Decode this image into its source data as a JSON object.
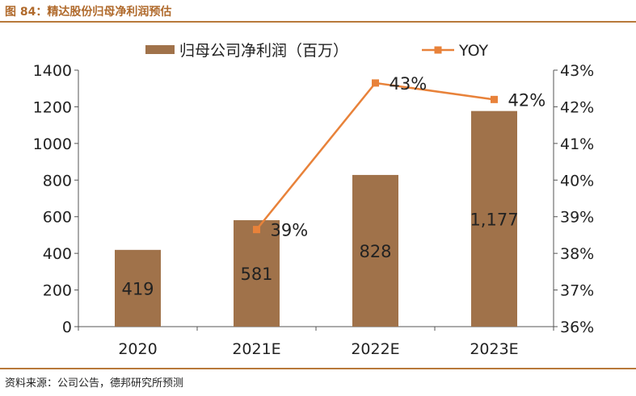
{
  "figure": {
    "title": "图 84：精达股份归母净利润预估",
    "source": "资料来源：公司公告，德邦研究所预测"
  },
  "colors": {
    "bar": "#a0724a",
    "line": "#e8823a",
    "accent_rule": "#b8793a",
    "title": "#b06a2c"
  },
  "chart_data": {
    "type": "bar",
    "categories": [
      "2020",
      "2021E",
      "2022E",
      "2023E"
    ],
    "series": [
      {
        "name": "归母公司净利润（百万）",
        "type": "bar",
        "axis": "left",
        "values": [
          419,
          581,
          828,
          1177
        ],
        "labels": [
          "419",
          "581",
          "828",
          "1,177"
        ]
      },
      {
        "name": "YOY",
        "type": "line",
        "axis": "right",
        "values": [
          null,
          38.65,
          42.65,
          42.2
        ],
        "labels": [
          null,
          "39%",
          "43%",
          "42%"
        ]
      }
    ],
    "y_left": {
      "ylim": [
        0,
        1400
      ],
      "ticks": [
        0,
        200,
        400,
        600,
        800,
        1000,
        1200,
        1400
      ],
      "tick_labels": [
        "0",
        "200",
        "400",
        "600",
        "800",
        "1000",
        "1200",
        "1400"
      ]
    },
    "y_right": {
      "ylim": [
        36,
        43
      ],
      "ticks": [
        36,
        37,
        38,
        39,
        40,
        41,
        42,
        43
      ],
      "tick_labels": [
        "36%",
        "37%",
        "38%",
        "39%",
        "40%",
        "41%",
        "42%",
        "43%"
      ]
    },
    "grid": false,
    "legend": "top-center"
  }
}
